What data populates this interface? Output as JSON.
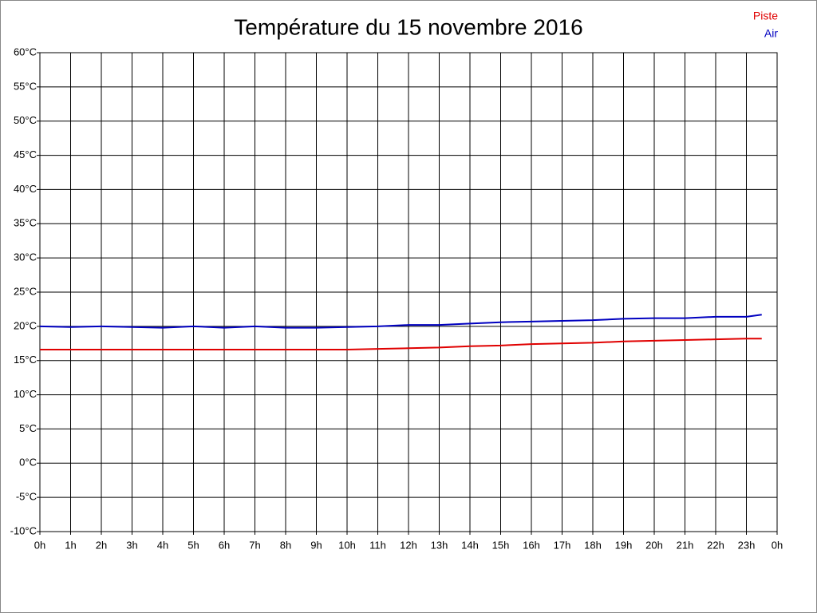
{
  "chart_data": {
    "type": "line",
    "title": "Température du 15 novembre 2016",
    "x": [
      0,
      1,
      2,
      3,
      4,
      5,
      6,
      7,
      8,
      9,
      10,
      11,
      12,
      13,
      14,
      15,
      16,
      17,
      18,
      19,
      20,
      21,
      22,
      23,
      23.5
    ],
    "series": [
      {
        "name": "Piste",
        "color": "#e00000",
        "values": [
          16.6,
          16.6,
          16.6,
          16.6,
          16.6,
          16.6,
          16.6,
          16.6,
          16.6,
          16.6,
          16.6,
          16.7,
          16.8,
          16.9,
          17.1,
          17.2,
          17.4,
          17.5,
          17.6,
          17.8,
          17.9,
          18.0,
          18.1,
          18.2,
          18.2
        ]
      },
      {
        "name": "Air",
        "color": "#0000c0",
        "values": [
          20.0,
          19.9,
          20.0,
          19.9,
          19.8,
          20.0,
          19.8,
          20.0,
          19.8,
          19.8,
          19.9,
          20.0,
          20.2,
          20.2,
          20.4,
          20.6,
          20.7,
          20.8,
          20.9,
          21.1,
          21.2,
          21.2,
          21.4,
          21.4,
          21.7
        ]
      }
    ],
    "xlim": [
      0,
      24
    ],
    "xticks": [
      {
        "value": 0,
        "label": "0h"
      },
      {
        "value": 1,
        "label": "1h"
      },
      {
        "value": 2,
        "label": "2h"
      },
      {
        "value": 3,
        "label": "3h"
      },
      {
        "value": 4,
        "label": "4h"
      },
      {
        "value": 5,
        "label": "5h"
      },
      {
        "value": 6,
        "label": "6h"
      },
      {
        "value": 7,
        "label": "7h"
      },
      {
        "value": 8,
        "label": "8h"
      },
      {
        "value": 9,
        "label": "9h"
      },
      {
        "value": 10,
        "label": "10h"
      },
      {
        "value": 11,
        "label": "11h"
      },
      {
        "value": 12,
        "label": "12h"
      },
      {
        "value": 13,
        "label": "13h"
      },
      {
        "value": 14,
        "label": "14h"
      },
      {
        "value": 15,
        "label": "15h"
      },
      {
        "value": 16,
        "label": "16h"
      },
      {
        "value": 17,
        "label": "17h"
      },
      {
        "value": 18,
        "label": "18h"
      },
      {
        "value": 19,
        "label": "19h"
      },
      {
        "value": 20,
        "label": "20h"
      },
      {
        "value": 21,
        "label": "21h"
      },
      {
        "value": 22,
        "label": "22h"
      },
      {
        "value": 23,
        "label": "23h"
      },
      {
        "value": 24,
        "label": "0h"
      }
    ],
    "ylim": [
      -10,
      60
    ],
    "yticks": [
      {
        "value": -10,
        "label": "-10°C"
      },
      {
        "value": -5,
        "label": "-5°C"
      },
      {
        "value": 0,
        "label": "0°C"
      },
      {
        "value": 5,
        "label": "5°C"
      },
      {
        "value": 10,
        "label": "10°C"
      },
      {
        "value": 15,
        "label": "15°C"
      },
      {
        "value": 20,
        "label": "20°C"
      },
      {
        "value": 25,
        "label": "25°C"
      },
      {
        "value": 30,
        "label": "30°C"
      },
      {
        "value": 35,
        "label": "35°C"
      },
      {
        "value": 40,
        "label": "40°C"
      },
      {
        "value": 45,
        "label": "45°C"
      },
      {
        "value": 50,
        "label": "50°C"
      },
      {
        "value": 55,
        "label": "55°C"
      },
      {
        "value": 60,
        "label": "60°C"
      }
    ],
    "grid": true,
    "legend": "top-right"
  }
}
